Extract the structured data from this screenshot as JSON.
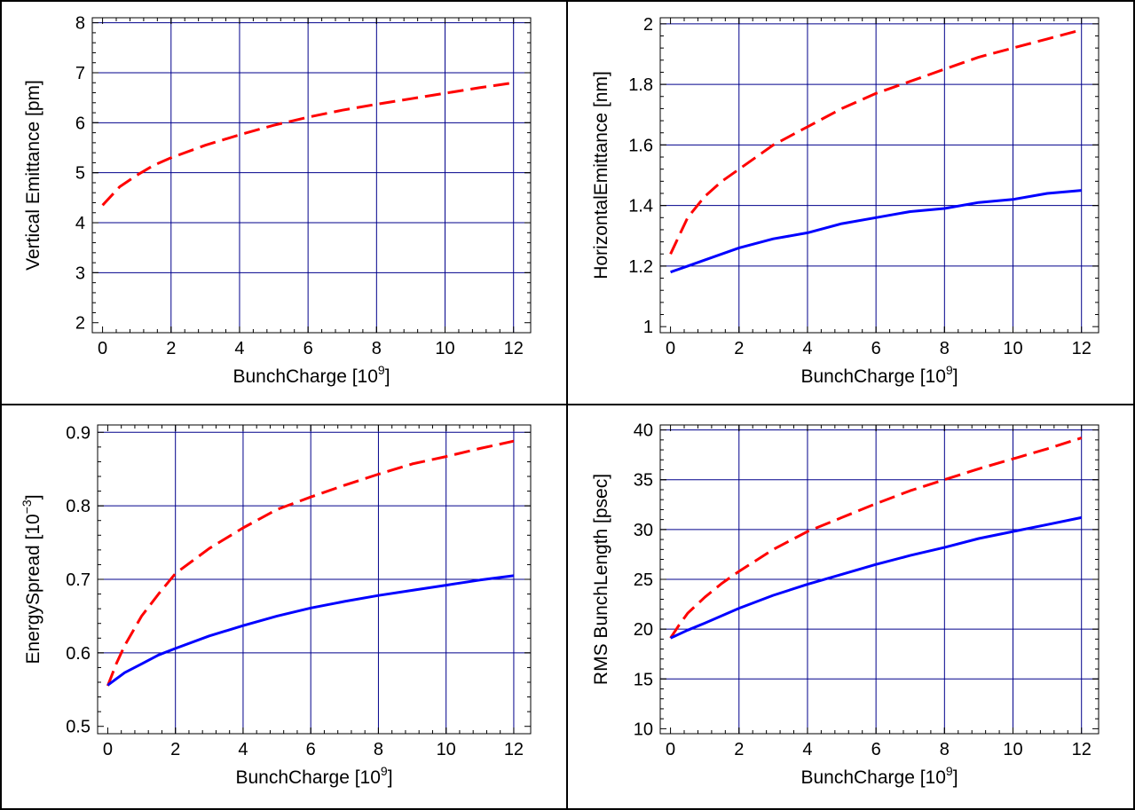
{
  "colors": {
    "axis": "#000000",
    "grid": "#00008B",
    "series_dashed": "#FF0000",
    "series_solid": "#0000FF",
    "frame": "#000000"
  },
  "chart_data": [
    {
      "type": "line",
      "ylabel": "Vertical Emittance [pm]",
      "xlabel_main": "BunchCharge [10",
      "xlabel_sup": "9",
      "xlabel_end": "]",
      "xlim": [
        -0.3,
        12.5
      ],
      "ylim": [
        1.8,
        8.1
      ],
      "xticks": [
        0,
        2,
        4,
        6,
        8,
        10,
        12
      ],
      "yticks": [
        2,
        3,
        4,
        5,
        6,
        7,
        8
      ],
      "grid": true,
      "series": [
        {
          "style": "dashed",
          "color": "#FF0000",
          "x": [
            0,
            0.5,
            1,
            1.5,
            2,
            3,
            4,
            5,
            6,
            7,
            8,
            9,
            10,
            11,
            12
          ],
          "y": [
            4.35,
            4.72,
            4.95,
            5.15,
            5.3,
            5.55,
            5.76,
            5.95,
            6.11,
            6.25,
            6.37,
            6.48,
            6.59,
            6.7,
            6.8
          ]
        }
      ]
    },
    {
      "type": "line",
      "ylabel": "HorizontalEmittance [nm]",
      "xlabel_main": "BunchCharge [10",
      "xlabel_sup": "9",
      "xlabel_end": "]",
      "xlim": [
        -0.3,
        12.5
      ],
      "ylim": [
        0.98,
        2.02
      ],
      "xticks": [
        0,
        2,
        4,
        6,
        8,
        10,
        12
      ],
      "yticks": [
        1,
        1.2,
        1.4,
        1.6,
        1.8,
        2
      ],
      "ytick_labels": [
        "1",
        "1.2",
        "1.4",
        "1.6",
        "1.8",
        "2"
      ],
      "grid": true,
      "series": [
        {
          "style": "dashed",
          "color": "#FF0000",
          "x": [
            0,
            0.5,
            1,
            1.5,
            2,
            3,
            4,
            5,
            6,
            7,
            8,
            9,
            10,
            11,
            12
          ],
          "y": [
            1.24,
            1.36,
            1.43,
            1.48,
            1.52,
            1.6,
            1.66,
            1.72,
            1.77,
            1.81,
            1.85,
            1.89,
            1.92,
            1.95,
            1.98
          ]
        },
        {
          "style": "solid",
          "color": "#0000FF",
          "x": [
            0,
            0.5,
            1,
            2,
            3,
            4,
            5,
            6,
            7,
            8,
            9,
            10,
            11,
            12
          ],
          "y": [
            1.18,
            1.2,
            1.22,
            1.26,
            1.29,
            1.31,
            1.34,
            1.36,
            1.38,
            1.39,
            1.41,
            1.42,
            1.44,
            1.45
          ]
        }
      ]
    },
    {
      "type": "line",
      "ylabel_main": "EnergySpread [10",
      "ylabel_sup": "−3",
      "ylabel_end": "]",
      "xlabel_main": "BunchCharge [10",
      "xlabel_sup": "9",
      "xlabel_end": "]",
      "xlim": [
        -0.3,
        12.5
      ],
      "ylim": [
        0.49,
        0.91
      ],
      "xticks": [
        0,
        2,
        4,
        6,
        8,
        10,
        12
      ],
      "yticks": [
        0.5,
        0.6,
        0.7,
        0.8,
        0.9
      ],
      "ytick_labels": [
        "0.5",
        "0.6",
        "0.7",
        "0.8",
        "0.9"
      ],
      "grid": true,
      "series": [
        {
          "style": "dashed",
          "color": "#FF0000",
          "x": [
            0,
            0.25,
            0.5,
            1,
            1.5,
            2,
            3,
            4,
            5,
            6,
            7,
            8,
            9,
            10,
            11,
            12
          ],
          "y": [
            0.555,
            0.585,
            0.61,
            0.65,
            0.68,
            0.708,
            0.742,
            0.77,
            0.795,
            0.812,
            0.828,
            0.843,
            0.857,
            0.867,
            0.878,
            0.888
          ]
        },
        {
          "style": "solid",
          "color": "#0000FF",
          "x": [
            0,
            0.5,
            1,
            1.5,
            2,
            3,
            4,
            5,
            6,
            7,
            8,
            9,
            10,
            11,
            12
          ],
          "y": [
            0.556,
            0.573,
            0.585,
            0.597,
            0.606,
            0.623,
            0.637,
            0.65,
            0.661,
            0.67,
            0.678,
            0.685,
            0.692,
            0.699,
            0.705
          ]
        }
      ]
    },
    {
      "type": "line",
      "ylabel": "RMS BunchLength [psec]",
      "xlabel_main": "BunchCharge [10",
      "xlabel_sup": "9",
      "xlabel_end": "]",
      "xlim": [
        -0.3,
        12.5
      ],
      "ylim": [
        9.5,
        40.5
      ],
      "xticks": [
        0,
        2,
        4,
        6,
        8,
        10,
        12
      ],
      "yticks": [
        10,
        15,
        20,
        25,
        30,
        35,
        40
      ],
      "grid": true,
      "series": [
        {
          "style": "dashed",
          "color": "#FF0000",
          "x": [
            0,
            0.25,
            0.5,
            1,
            1.5,
            2,
            3,
            4,
            5,
            6,
            7,
            8,
            9,
            10,
            11,
            12
          ],
          "y": [
            19.1,
            20.4,
            21.6,
            23.2,
            24.6,
            25.8,
            28,
            29.8,
            31.2,
            32.6,
            33.9,
            35,
            36.1,
            37.1,
            38.1,
            39.2
          ]
        },
        {
          "style": "solid",
          "color": "#0000FF",
          "x": [
            0,
            0.5,
            1,
            2,
            3,
            4,
            5,
            6,
            7,
            8,
            9,
            10,
            11,
            12
          ],
          "y": [
            19.1,
            19.9,
            20.6,
            22.1,
            23.4,
            24.5,
            25.5,
            26.5,
            27.4,
            28.2,
            29.1,
            29.8,
            30.5,
            31.2
          ]
        }
      ]
    }
  ]
}
